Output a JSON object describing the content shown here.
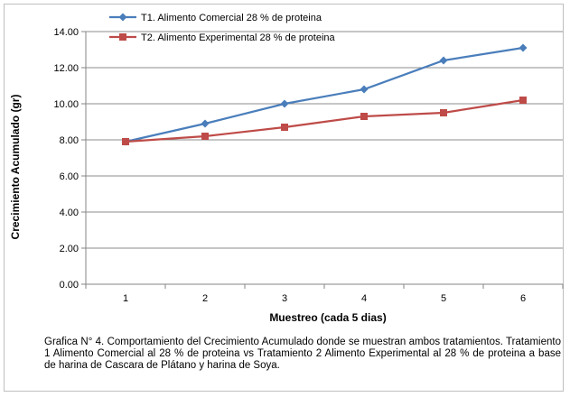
{
  "chart_data": {
    "type": "line",
    "categories": [
      "1",
      "2",
      "3",
      "4",
      "5",
      "6"
    ],
    "series": [
      {
        "name": "T1. Alimento Comercial 28 % de proteina",
        "color": "#4a7ebb",
        "marker": "diamond",
        "values": [
          7.9,
          8.9,
          10.0,
          10.8,
          12.4,
          13.1
        ]
      },
      {
        "name": "T2. Alimento Experimental 28 % de proteina",
        "color": "#be4b48",
        "marker": "square",
        "values": [
          7.9,
          8.2,
          8.7,
          9.3,
          9.5,
          10.2
        ]
      }
    ],
    "xlabel": "Muestreo (cada 5 dias)",
    "ylabel": "Crecimiento Acumulado (gr)",
    "ylim": [
      0,
      14
    ],
    "yticks": [
      "0.00",
      "2.00",
      "4.00",
      "6.00",
      "8.00",
      "10.00",
      "12.00",
      "14.00"
    ],
    "grid": "horizontal",
    "legend_position": "top-left"
  },
  "caption": "Grafica N° 4. Comportamiento del Crecimiento Acumulado donde se muestran ambos tratamientos. Tratamiento 1 Alimento Comercial al 28 % de proteina vs Tratamiento 2 Alimento Experimental al 28 % de proteina a base de harina de Cascara de Plátano y harina de Soya."
}
